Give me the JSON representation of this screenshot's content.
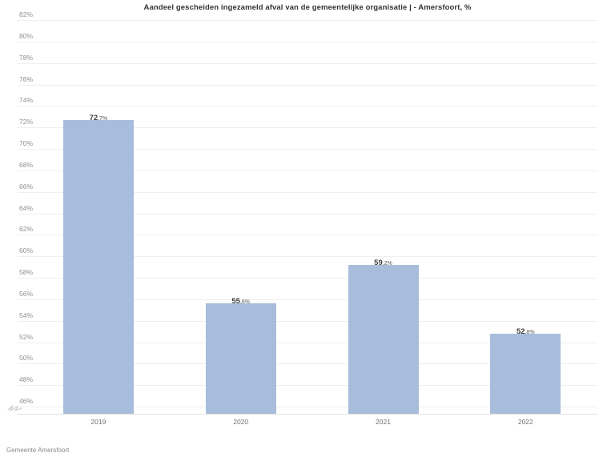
{
  "title": "Aandeel gescheiden ingezameld afval van de gemeentelijke organisatie | - Amersfoort, %",
  "footer": "Gemeente Amersfoort",
  "colors": {
    "bar": "#a8bddc",
    "gridline": "#efefef",
    "axis_line": "#e2e2e2",
    "ytick_label": "#8f8f8f",
    "xtick_label": "#737373",
    "value_label_int": "#3f3f3f",
    "value_label_dec": "#8a8a8a",
    "title": "#333333",
    "background": "#ffffff"
  },
  "chart_data": {
    "type": "bar",
    "title": "Aandeel gescheiden ingezameld afval van de gemeentelijke organisatie | - Amersfoort, %",
    "categories": [
      "2019",
      "2020",
      "2021",
      "2022"
    ],
    "values": [
      72.7,
      55.6,
      59.2,
      52.8
    ],
    "value_labels": [
      {
        "int": "72",
        "dec": ",7%",
        "full": "72,7%"
      },
      {
        "int": "55",
        "dec": ",6%",
        "full": "55,6%"
      },
      {
        "int": "59",
        "dec": ",2%",
        "full": "59,2%"
      },
      {
        "int": "52",
        "dec": ",8%",
        "full": "52,8%"
      }
    ],
    "xlabel": "",
    "ylabel": "",
    "ylim": [
      46,
      82
    ],
    "ytick_step": 2,
    "yticks": [
      "82%",
      "80%",
      "78%",
      "76%",
      "74%",
      "72%",
      "70%",
      "68%",
      "66%",
      "64%",
      "62%",
      "60%",
      "58%",
      "56%",
      "54%",
      "52%",
      "50%",
      "48%",
      "46%"
    ],
    "grid": true,
    "legend": false,
    "axis_break": true,
    "source_label": "Gemeente Amersfoort"
  }
}
